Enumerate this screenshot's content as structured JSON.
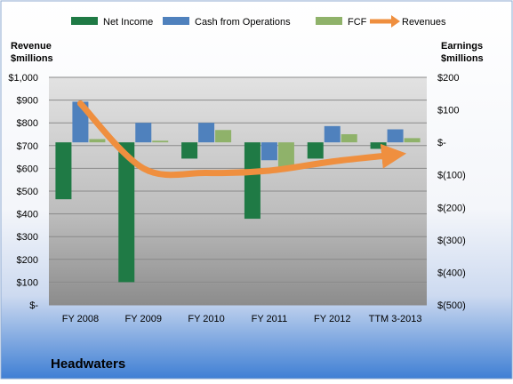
{
  "chart_data": {
    "type": "bar",
    "title": "Headwaters",
    "categories": [
      "FY 2008",
      "FY 2009",
      "FY 2010",
      "FY 2011",
      "FY 2012",
      "TTM 3-2013"
    ],
    "left_axis": {
      "label_line1": "Revenue",
      "label_line2": "$millions",
      "ylim": [
        0,
        1000
      ],
      "ticks": [
        {
          "value": 0,
          "label": "$-"
        },
        {
          "value": 100,
          "label": "$100"
        },
        {
          "value": 200,
          "label": "$200"
        },
        {
          "value": 300,
          "label": "$300"
        },
        {
          "value": 400,
          "label": "$400"
        },
        {
          "value": 500,
          "label": "$500"
        },
        {
          "value": 600,
          "label": "$600"
        },
        {
          "value": 700,
          "label": "$700"
        },
        {
          "value": 800,
          "label": "$800"
        },
        {
          "value": 900,
          "label": "$900"
        },
        {
          "value": 1000,
          "label": "$1,000"
        }
      ]
    },
    "right_axis": {
      "label_line1": "Earnings",
      "label_line2": "$millions",
      "ylim": [
        -500,
        200
      ],
      "ticks": [
        {
          "value": 200,
          "label": "$200"
        },
        {
          "value": 100,
          "label": "$100"
        },
        {
          "value": 0,
          "label": "$-"
        },
        {
          "value": -100,
          "label": "$(100)"
        },
        {
          "value": -200,
          "label": "$(200)"
        },
        {
          "value": -300,
          "label": "$(300)"
        },
        {
          "value": -400,
          "label": "$(400)"
        },
        {
          "value": -500,
          "label": "$(500)"
        }
      ]
    },
    "series": [
      {
        "name": "Net Income",
        "kind": "bar",
        "axis": "right",
        "color": "#1f7a45",
        "values": [
          -175,
          -430,
          -50,
          -235,
          -50,
          -20
        ]
      },
      {
        "name": "Cash from Operations",
        "kind": "bar",
        "axis": "right",
        "color": "#4f81bd",
        "values": [
          125,
          60,
          60,
          -55,
          50,
          40
        ]
      },
      {
        "name": "FCF",
        "kind": "bar",
        "axis": "right",
        "color": "#8fb26a",
        "values": [
          10,
          5,
          38,
          -80,
          25,
          13
        ]
      },
      {
        "name": "Revenues",
        "kind": "line",
        "axis": "left",
        "color": "#ef8f3f",
        "values": [
          885,
          600,
          580,
          590,
          630,
          660
        ]
      }
    ],
    "grid": true,
    "legend_position": "top"
  }
}
